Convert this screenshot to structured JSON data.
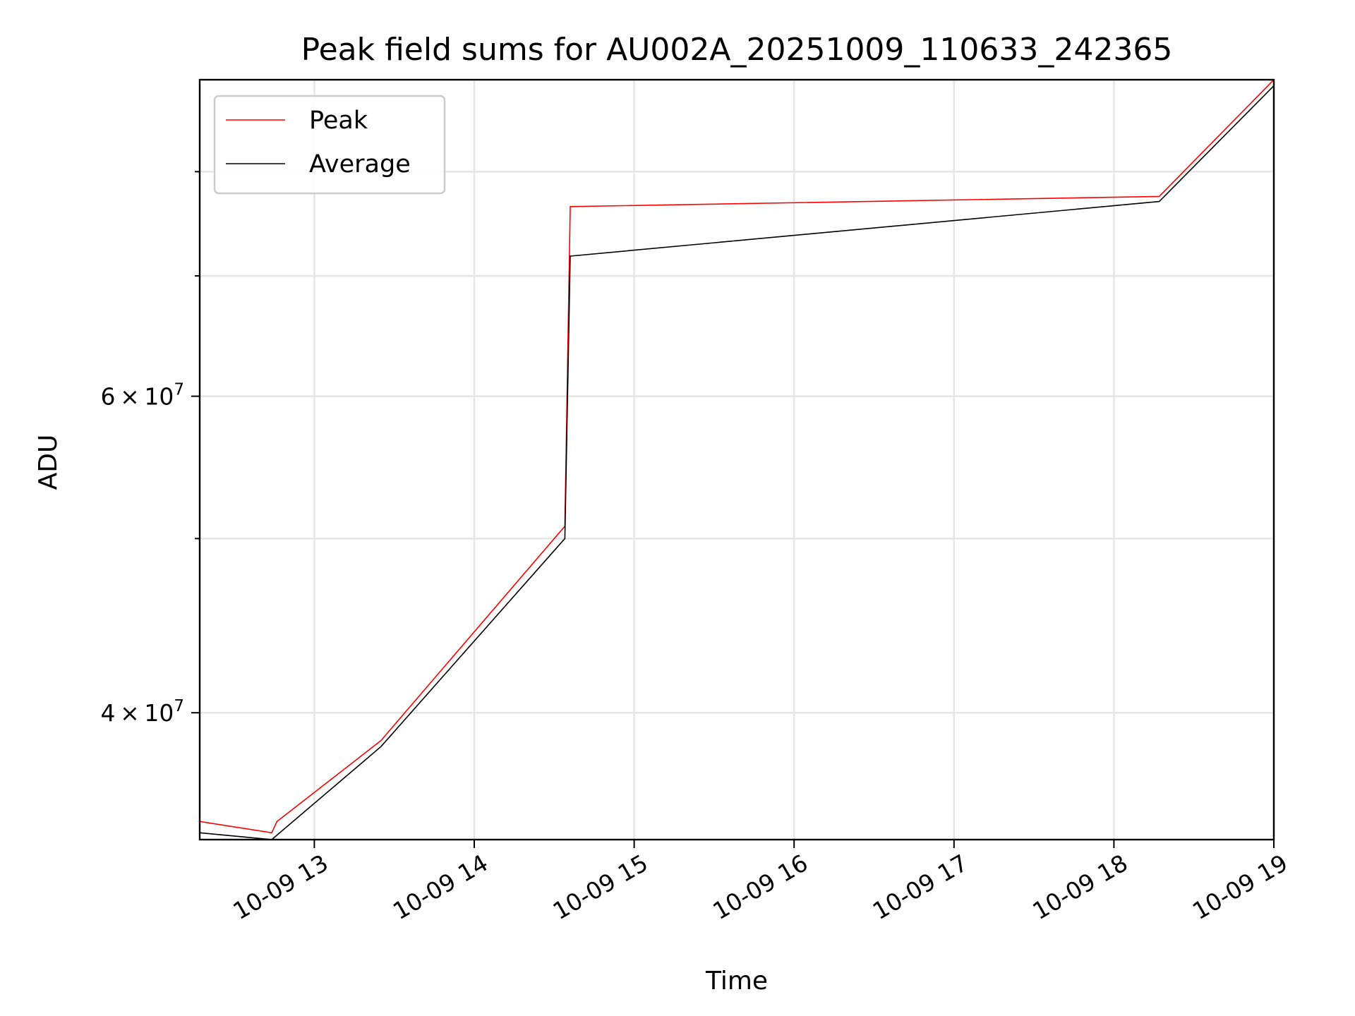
{
  "chart_data": {
    "type": "line",
    "title": "Peak field sums for AU002A_20251009_110633_242365",
    "xlabel": "Time",
    "ylabel": "ADU",
    "xlim": [
      "2025-10-09 12:17",
      "2025-10-09 19:00"
    ],
    "ylim": [
      34000000,
      90000000
    ],
    "yscale": "log",
    "x_ticks": [
      {
        "value": "2025-10-09 13:00",
        "label": "10-09 13"
      },
      {
        "value": "2025-10-09 14:00",
        "label": "10-09 14"
      },
      {
        "value": "2025-10-09 15:00",
        "label": "10-09 15"
      },
      {
        "value": "2025-10-09 16:00",
        "label": "10-09 16"
      },
      {
        "value": "2025-10-09 17:00",
        "label": "10-09 17"
      },
      {
        "value": "2025-10-09 18:00",
        "label": "10-09 18"
      },
      {
        "value": "2025-10-09 19:00",
        "label": "10-09 19"
      }
    ],
    "y_major_ticks": [
      {
        "value": 40000000,
        "base": "4",
        "exp": "7"
      },
      {
        "value": 60000000,
        "base": "6",
        "exp": "7"
      }
    ],
    "y_minor_ticks": [
      50000000,
      70000000,
      80000000
    ],
    "grid": true,
    "legend": "top-left",
    "series": [
      {
        "name": "Peak",
        "color": "#ff0000",
        "points": [
          [
            "2025-10-09 12:17",
            34800000
          ],
          [
            "2025-10-09 12:44",
            34300000
          ],
          [
            "2025-10-09 12:46",
            34800000
          ],
          [
            "2025-10-09 13:25",
            38600000
          ],
          [
            "2025-10-09 14:34",
            50800000
          ],
          [
            "2025-10-09 14:36",
            76500000
          ],
          [
            "2025-10-09 18:17",
            77500000
          ],
          [
            "2025-10-09 19:00",
            90000000
          ]
        ]
      },
      {
        "name": "Average",
        "color": "#000000",
        "points": [
          [
            "2025-10-09 12:17",
            34300000
          ],
          [
            "2025-10-09 12:44",
            34000000
          ],
          [
            "2025-10-09 13:25",
            38300000
          ],
          [
            "2025-10-09 14:34",
            50000000
          ],
          [
            "2025-10-09 14:36",
            71800000
          ],
          [
            "2025-10-09 18:17",
            77000000
          ],
          [
            "2025-10-09 19:00",
            89300000
          ]
        ]
      }
    ]
  }
}
